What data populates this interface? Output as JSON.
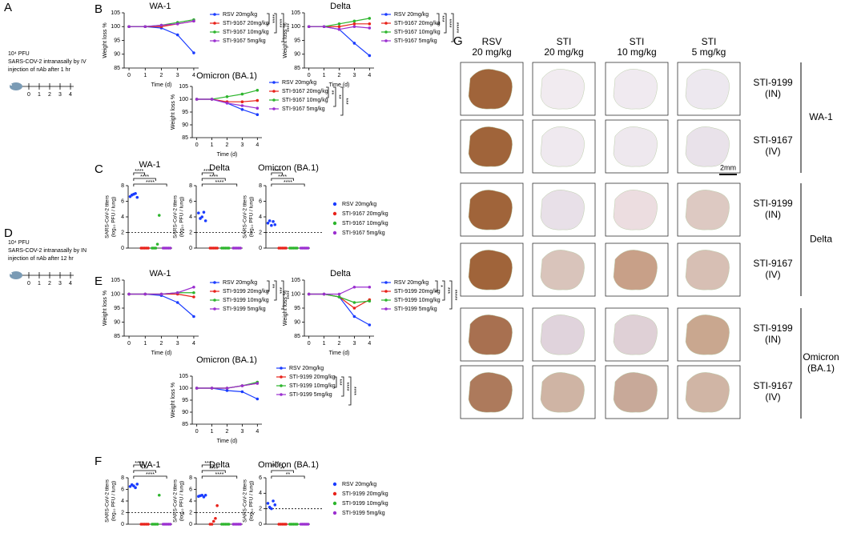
{
  "panel_labels": [
    "A",
    "B",
    "C",
    "D",
    "E",
    "F",
    "G"
  ],
  "schematics": [
    {
      "lines": [
        "10⁴ PFU",
        "SARS-COV-2  intranasally by IV",
        "injection of nAb  after 1 hr"
      ],
      "ticks": [
        "0",
        "1",
        "2",
        "3",
        "4"
      ]
    },
    {
      "lines": [
        "10⁴ PFU",
        "SARS-COV-2  intranasally by IN",
        "injection of nAb  after 12 hr"
      ],
      "ticks": [
        "0",
        "1",
        "2",
        "3",
        "4"
      ]
    }
  ],
  "chart_data": [
    {
      "type": "line",
      "title": "WA-1",
      "x_label": "Time (d)",
      "y_label": "Weight loss %",
      "x": [
        0,
        1,
        2,
        3,
        4
      ],
      "xlim": [
        -0.3,
        4.3
      ],
      "xticks": [
        0,
        1,
        2,
        3,
        4
      ],
      "ylim": [
        85,
        105
      ],
      "yticks": [
        85,
        90,
        95,
        100,
        105
      ],
      "series": [
        {
          "name": "RSV 20mg/kg",
          "color": "#1a3cff",
          "values": [
            100,
            100,
            99.5,
            97,
            90.5
          ]
        },
        {
          "name": "STI-9167 20mg/kg",
          "color": "#e8221a",
          "values": [
            100,
            100,
            100,
            101,
            102
          ]
        },
        {
          "name": "STI-9167 10mg/kg",
          "color": "#2db52d",
          "values": [
            100,
            100,
            100.5,
            101.5,
            102.5
          ]
        },
        {
          "name": "STI-9167 5mg/kg",
          "color": "#9b2fd0",
          "values": [
            100,
            100,
            100.5,
            101,
            102
          ]
        }
      ],
      "significance": [
        "****",
        "****",
        "****"
      ]
    },
    {
      "type": "line",
      "title": "Delta",
      "x_label": "Time (d)",
      "y_label": "Weight loss %",
      "x": [
        0,
        1,
        2,
        3,
        4
      ],
      "xlim": [
        -0.3,
        4.3
      ],
      "xticks": [
        0,
        1,
        2,
        3,
        4
      ],
      "ylim": [
        85,
        105
      ],
      "yticks": [
        85,
        90,
        95,
        100,
        105
      ],
      "series": [
        {
          "name": "RSV 20mg/kg",
          "color": "#1a3cff",
          "values": [
            100,
            100,
            99,
            94,
            89.5
          ]
        },
        {
          "name": "STI-9167 20mg/kg",
          "color": "#e8221a",
          "values": [
            100,
            100,
            100,
            101,
            101
          ]
        },
        {
          "name": "STI-9167 10mg/kg",
          "color": "#2db52d",
          "values": [
            100,
            100,
            101,
            102,
            103
          ]
        },
        {
          "name": "STI-9167 5mg/kg",
          "color": "#9b2fd0",
          "values": [
            100,
            100,
            99,
            100,
            99.5
          ]
        }
      ],
      "significance": [
        "***",
        "****",
        "*****"
      ]
    },
    {
      "type": "line",
      "title": "Omicron (BA.1)",
      "x_label": "Time (d)",
      "y_label": "Weight loss %",
      "x": [
        0,
        1,
        2,
        3,
        4
      ],
      "xlim": [
        -0.3,
        4.3
      ],
      "xticks": [
        0,
        1,
        2,
        3,
        4
      ],
      "ylim": [
        85,
        105
      ],
      "yticks": [
        85,
        90,
        95,
        100,
        105
      ],
      "series": [
        {
          "name": "RSV 20mg/kg",
          "color": "#1a3cff",
          "values": [
            100,
            100,
            98.5,
            96,
            94
          ]
        },
        {
          "name": "STI-9167 20mg/kg",
          "color": "#e8221a",
          "values": [
            100,
            100,
            99,
            99,
            99.5
          ]
        },
        {
          "name": "STI-9167 10mg/kg",
          "color": "#2db52d",
          "values": [
            100,
            100,
            101,
            102,
            103.5
          ]
        },
        {
          "name": "STI-9167 5mg/kg",
          "color": "#9b2fd0",
          "values": [
            100,
            100,
            98.5,
            97.5,
            96.5
          ]
        }
      ],
      "significance": [
        "**",
        "**",
        "***"
      ]
    },
    {
      "type": "dot",
      "title": "WA-1",
      "y_label": [
        "SARS-CoV-2 titers",
        "(log₁₀ PFU / lung)"
      ],
      "ylim": [
        0,
        8
      ],
      "yticks": [
        0,
        2,
        4,
        6,
        8
      ],
      "lod": 2,
      "series": [
        {
          "name": "RSV 20mg/kg",
          "color": "#1a3cff",
          "values": [
            6.6,
            6.8,
            6.9,
            7.0,
            6.5
          ]
        },
        {
          "name": "STI-9167 20mg/kg",
          "color": "#e8221a",
          "values": [
            0,
            0,
            0,
            0,
            0
          ]
        },
        {
          "name": "STI-9167 10mg/kg",
          "color": "#2db52d",
          "values": [
            0,
            0,
            0,
            0.5,
            4.2
          ]
        },
        {
          "name": "STI-9167 5mg/kg",
          "color": "#9b2fd0",
          "values": [
            0,
            0,
            0,
            0,
            0
          ]
        }
      ],
      "significance": [
        "****",
        "****",
        "****"
      ]
    },
    {
      "type": "dot",
      "title": "Delta",
      "y_label": [
        "SARS-CoV-2 titers",
        "(log₁₀ PFU / lung)"
      ],
      "ylim": [
        0,
        8
      ],
      "yticks": [
        0,
        2,
        4,
        6,
        8
      ],
      "lod": 2,
      "series": [
        {
          "color": "#1a3cff",
          "values": [
            4.5,
            3.8,
            4.0,
            4.6,
            3.5
          ]
        },
        {
          "color": "#e8221a",
          "values": [
            0,
            0,
            0,
            0,
            0
          ]
        },
        {
          "color": "#2db52d",
          "values": [
            0,
            0,
            0,
            0,
            0
          ]
        },
        {
          "color": "#9b2fd0",
          "values": [
            0,
            0,
            0,
            0,
            0
          ]
        }
      ],
      "significance": [
        "****",
        "****",
        "****"
      ]
    },
    {
      "type": "dot",
      "title": "Omicron (BA.1)",
      "y_label": [
        "SARS-CoV-2 titers",
        "(log₁₀ PFU / lung)"
      ],
      "ylim": [
        0,
        8
      ],
      "yticks": [
        0,
        2,
        4,
        6,
        8
      ],
      "lod": 2,
      "series": [
        {
          "color": "#1a3cff",
          "values": [
            3.2,
            3.5,
            2.9,
            3.4,
            3.0
          ]
        },
        {
          "color": "#e8221a",
          "values": [
            0,
            0,
            0,
            0,
            0
          ]
        },
        {
          "color": "#2db52d",
          "values": [
            0,
            0,
            0,
            0,
            0
          ]
        },
        {
          "color": "#9b2fd0",
          "values": [
            0,
            0,
            0,
            0,
            0
          ]
        }
      ],
      "significance": [
        "****",
        "****",
        "****"
      ]
    },
    {
      "type": "line",
      "title": "WA-1",
      "x_label": "Time (d)",
      "y_label": "Weight loss %",
      "x": [
        0,
        1,
        2,
        3,
        4
      ],
      "xlim": [
        -0.3,
        4.3
      ],
      "xticks": [
        0,
        1,
        2,
        3,
        4
      ],
      "ylim": [
        85,
        105
      ],
      "yticks": [
        85,
        90,
        95,
        100,
        105
      ],
      "series": [
        {
          "name": "RSV 20mg/kg",
          "color": "#1a3cff",
          "values": [
            100,
            100,
            99.5,
            97,
            92
          ]
        },
        {
          "name": "STI-9199 20mg/kg",
          "color": "#e8221a",
          "values": [
            100,
            100,
            100,
            100,
            99
          ]
        },
        {
          "name": "STI-9199 10mg/kg",
          "color": "#2db52d",
          "values": [
            100,
            100,
            100,
            100.5,
            100.5
          ]
        },
        {
          "name": "STI-9199 5mg/kg",
          "color": "#9b2fd0",
          "values": [
            100,
            100,
            100,
            100.5,
            102.5
          ]
        }
      ],
      "significance": [
        "**",
        "***",
        "****"
      ]
    },
    {
      "type": "line",
      "title": "Delta",
      "x_label": "Time (d)",
      "y_label": "Weight loss %",
      "x": [
        0,
        1,
        2,
        3,
        4
      ],
      "xlim": [
        -0.3,
        4.3
      ],
      "xticks": [
        0,
        1,
        2,
        3,
        4
      ],
      "ylim": [
        85,
        105
      ],
      "yticks": [
        85,
        90,
        95,
        100,
        105
      ],
      "series": [
        {
          "name": "RSV 20mg/kg",
          "color": "#1a3cff",
          "values": [
            100,
            100,
            99,
            92,
            89
          ]
        },
        {
          "name": "STI-9199 20mg/kg",
          "color": "#e8221a",
          "values": [
            100,
            100,
            99,
            95,
            98
          ]
        },
        {
          "name": "STI-9199 10mg/kg",
          "color": "#2db52d",
          "values": [
            100,
            100,
            99,
            97,
            97.5
          ]
        },
        {
          "name": "STI-9199 5mg/kg",
          "color": "#9b2fd0",
          "values": [
            100,
            100,
            100,
            102.5,
            102.5
          ]
        }
      ],
      "significance": [
        "*",
        "***",
        "*****"
      ]
    },
    {
      "type": "line",
      "title": "Omicron (BA.1)",
      "x_label": "Time (d)",
      "y_label": "Weight loss %",
      "x": [
        0,
        1,
        2,
        3,
        4
      ],
      "xlim": [
        -0.3,
        4.3
      ],
      "xticks": [
        0,
        1,
        2,
        3,
        4
      ],
      "ylim": [
        85,
        105
      ],
      "yticks": [
        85,
        90,
        95,
        100,
        105
      ],
      "series": [
        {
          "name": "RSV 20mg/kg",
          "color": "#1a3cff",
          "values": [
            100,
            100,
            99,
            98.5,
            95.5
          ]
        },
        {
          "name": "STI-9199 20mg/kg",
          "color": "#e8221a",
          "values": [
            100,
            100,
            100,
            101,
            102
          ]
        },
        {
          "name": "STI-9199 10mg/kg",
          "color": "#2db52d",
          "values": [
            100,
            100,
            100,
            101,
            102.5
          ]
        },
        {
          "name": "STI-9199 5mg/kg",
          "color": "#9b2fd0",
          "values": [
            100,
            100,
            100,
            101,
            102
          ]
        }
      ],
      "significance": [
        "***",
        "****",
        "****"
      ]
    },
    {
      "type": "dot",
      "title": "WA-1",
      "y_label": [
        "SARS-CoV-2 titers",
        "(log₁₀ PFU / lung)"
      ],
      "ylim": [
        0,
        8
      ],
      "yticks": [
        0,
        2,
        4,
        6,
        8
      ],
      "lod": 2,
      "series": [
        {
          "name": "RSV 20mg/kg",
          "color": "#1a3cff",
          "values": [
            6.5,
            6.8,
            6.6,
            6.3,
            6.9
          ]
        },
        {
          "name": "STI-9199 20mg/kg",
          "color": "#e8221a",
          "values": [
            0,
            0,
            0,
            0,
            0
          ]
        },
        {
          "name": "STI-9199 10mg/kg",
          "color": "#2db52d",
          "values": [
            0,
            0,
            0,
            0,
            5
          ]
        },
        {
          "name": "STI-9199 5mg/kg",
          "color": "#9b2fd0",
          "values": [
            0,
            0,
            0,
            0,
            0
          ]
        }
      ],
      "significance": [
        "****",
        "***",
        "****"
      ]
    },
    {
      "type": "dot",
      "title": "Delta",
      "y_label": [
        "SARS-CoV-2 titers",
        "(log₁₀ PFU / lung)"
      ],
      "ylim": [
        0,
        8
      ],
      "yticks": [
        0,
        2,
        4,
        6,
        8
      ],
      "lod": 2,
      "series": [
        {
          "color": "#1a3cff",
          "values": [
            4.8,
            4.9,
            5.0,
            4.7,
            5.0
          ]
        },
        {
          "color": "#e8221a",
          "values": [
            0,
            0,
            0.5,
            1,
            3.2
          ]
        },
        {
          "color": "#2db52d",
          "values": [
            0,
            0,
            0,
            0,
            0
          ]
        },
        {
          "color": "#9b2fd0",
          "values": [
            0,
            0,
            0,
            0,
            0
          ]
        }
      ],
      "significance": [
        "***",
        "****",
        "****"
      ]
    },
    {
      "type": "dot",
      "title": "Omicron (BA.1)",
      "y_label": [
        "SARS-CoV-2 titers",
        "(log₁₀ PFU / lung)"
      ],
      "ylim": [
        0,
        6
      ],
      "yticks": [
        0,
        2,
        4,
        6
      ],
      "lod": 2,
      "series": [
        {
          "color": "#1a3cff",
          "values": [
            2.7,
            2.2,
            2.0,
            3.0,
            2.5
          ]
        },
        {
          "color": "#e8221a",
          "values": [
            0,
            0,
            0,
            0,
            0
          ]
        },
        {
          "color": "#2db52d",
          "values": [
            0,
            0,
            0,
            0,
            0
          ]
        },
        {
          "color": "#9b2fd0",
          "values": [
            0,
            0,
            0,
            0,
            0
          ]
        }
      ],
      "significance": [
        "**",
        "**",
        "**"
      ]
    }
  ],
  "histology": {
    "columns": [
      [
        "RSV",
        "20 mg/kg"
      ],
      [
        "STI",
        "20 mg/kg"
      ],
      [
        "STI",
        "10 mg/kg"
      ],
      [
        "STI",
        "5 mg/kg"
      ]
    ],
    "groups": [
      {
        "name": [
          "WA-1"
        ],
        "rows": [
          [
            "STI-9199",
            "(IN)"
          ],
          [
            "STI-9167",
            "(IV)"
          ]
        ]
      },
      {
        "name": [
          "Delta"
        ],
        "rows": [
          [
            "STI-9199",
            "(IN)"
          ],
          [
            "STI-9167",
            "(IV)"
          ]
        ]
      },
      {
        "name": [
          "Omicron",
          "(BA.1)"
        ],
        "rows": [
          [
            "STI-9199",
            "(IN)"
          ],
          [
            "STI-9167",
            "(IV)"
          ]
        ]
      }
    ],
    "scale_bar": "2mm"
  }
}
